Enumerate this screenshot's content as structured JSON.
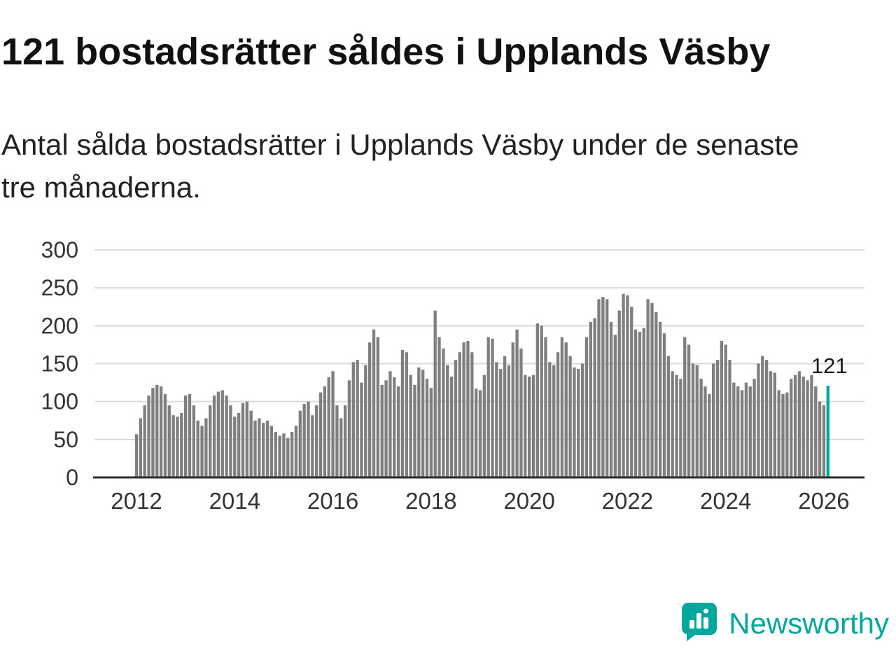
{
  "title": "121 bostadsrätter såldes i Upplands Väsby",
  "subtitle": "Antal sålda bostadsrätter i Upplands Väsby under de senaste tre månaderna.",
  "branding": {
    "name": "Newsworthy"
  },
  "colors": {
    "bar": "#7f7f7f",
    "highlight": "#00A79D",
    "grid": "#d9d9d9",
    "axis": "#2b2b2b",
    "tick_text": "#333333",
    "annotation_text": "#1a1a1a",
    "brand": "#00A79D"
  },
  "chart_data": {
    "type": "bar",
    "title": "121 bostadsrätter såldes i Upplands Väsby",
    "subtitle": "Antal sålda bostadsrätter i Upplands Väsby under de senaste tre månaderna.",
    "x_start_year": 2012,
    "x_ticks": [
      2012,
      2014,
      2016,
      2018,
      2020,
      2022,
      2024,
      2026
    ],
    "y_ticks": [
      0,
      50,
      100,
      150,
      200,
      250,
      300
    ],
    "ylim": [
      0,
      300
    ],
    "grid": true,
    "legend": false,
    "highlight_last": true,
    "last_value_label": "121",
    "values": [
      57,
      78,
      95,
      108,
      118,
      122,
      120,
      110,
      95,
      82,
      80,
      85,
      108,
      110,
      95,
      75,
      68,
      78,
      95,
      108,
      113,
      115,
      108,
      95,
      80,
      85,
      98,
      100,
      88,
      75,
      78,
      72,
      75,
      68,
      60,
      55,
      58,
      52,
      60,
      68,
      88,
      97,
      100,
      82,
      95,
      112,
      120,
      132,
      140,
      95,
      78,
      95,
      128,
      152,
      155,
      125,
      148,
      178,
      195,
      185,
      122,
      128,
      140,
      132,
      120,
      168,
      165,
      135,
      122,
      145,
      142,
      130,
      118,
      220,
      185,
      170,
      148,
      133,
      155,
      165,
      178,
      180,
      165,
      117,
      115,
      135,
      185,
      183,
      152,
      143,
      160,
      148,
      178,
      195,
      170,
      135,
      133,
      135,
      203,
      200,
      185,
      152,
      148,
      165,
      185,
      178,
      160,
      145,
      143,
      150,
      185,
      205,
      210,
      235,
      238,
      235,
      205,
      188,
      220,
      242,
      240,
      225,
      195,
      192,
      197,
      235,
      230,
      218,
      205,
      190,
      160,
      140,
      135,
      130,
      185,
      175,
      150,
      148,
      130,
      120,
      110,
      150,
      155,
      180,
      175,
      155,
      125,
      120,
      115,
      125,
      120,
      130,
      150,
      160,
      155,
      140,
      138,
      115,
      110,
      112,
      130,
      135,
      140,
      133,
      128,
      135,
      120,
      100,
      95,
      121
    ]
  }
}
